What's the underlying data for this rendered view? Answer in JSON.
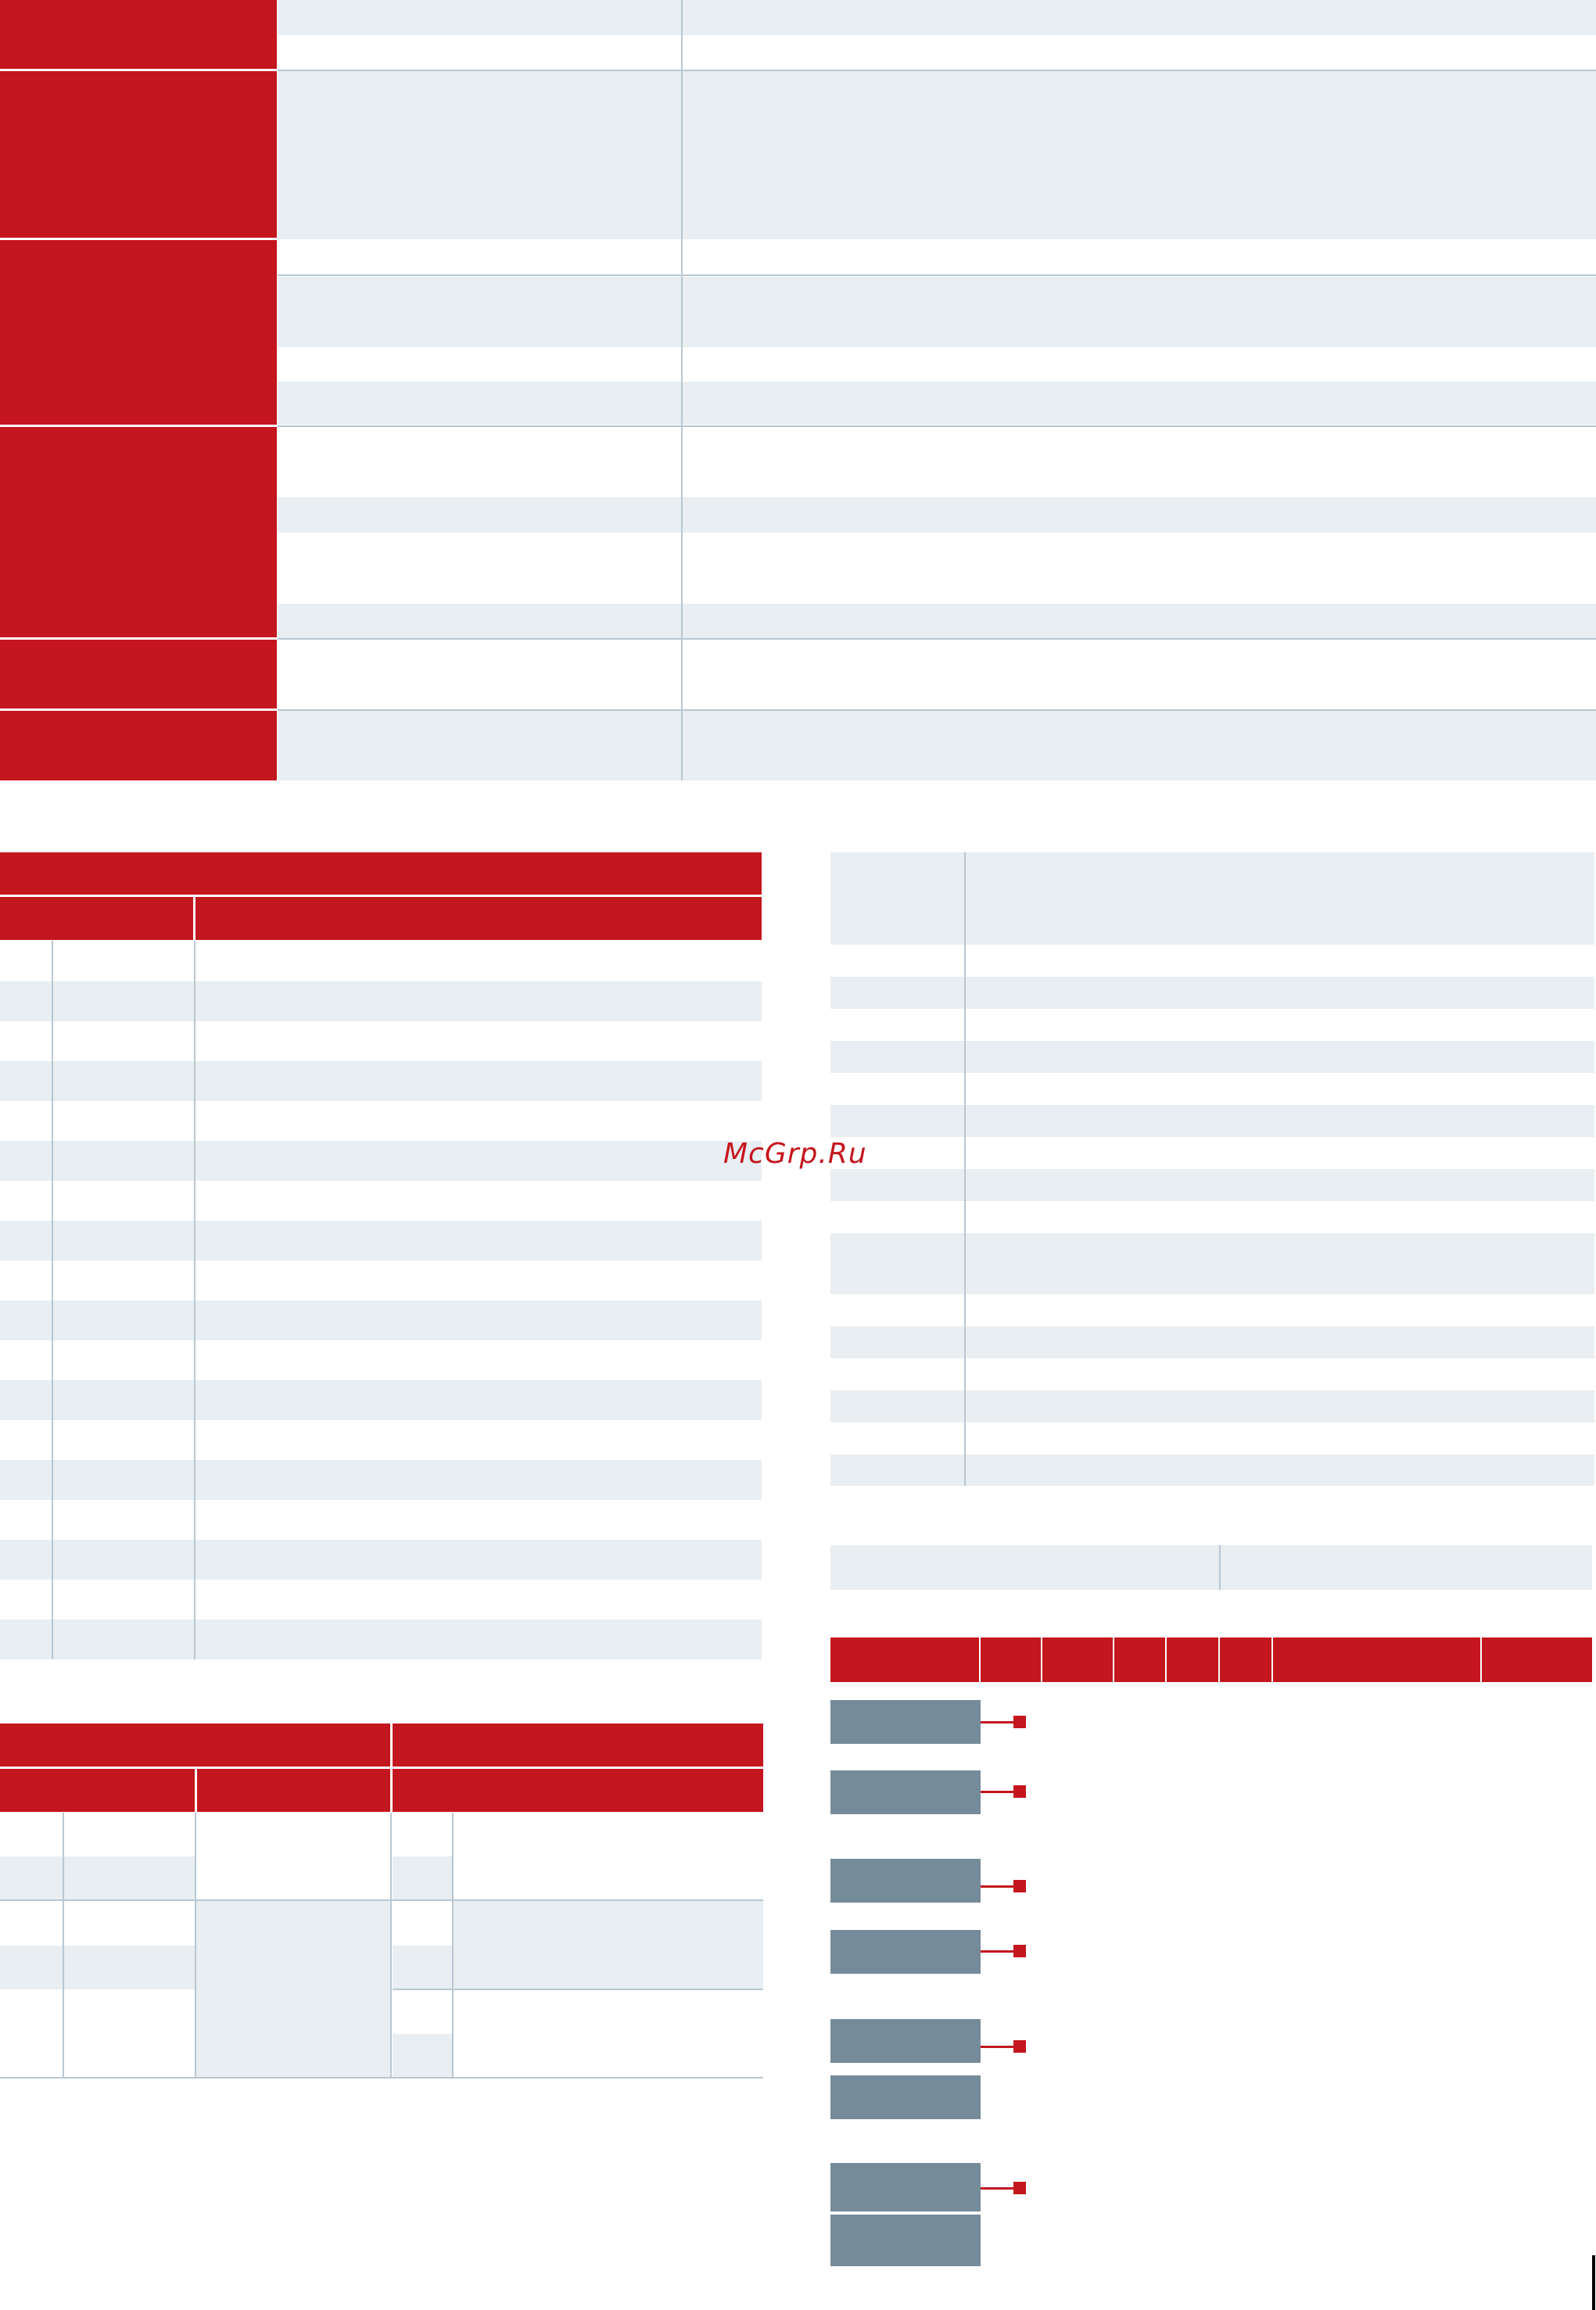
{
  "watermark": {
    "text": "McGrp.Ru"
  },
  "colors": {
    "accent_red": "#c4161e",
    "row_shade": "#e8eef1",
    "rule": "#b8c7d3",
    "block_gray": "#768b99"
  }
}
